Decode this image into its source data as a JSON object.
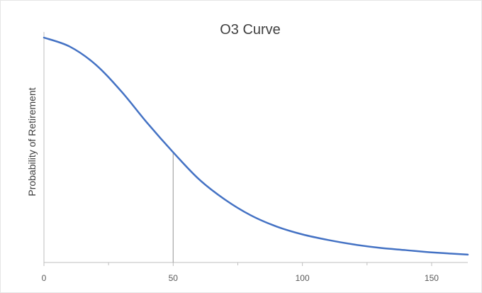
{
  "chart_data": {
    "type": "line",
    "title": "O3 Curve",
    "xlabel": "",
    "ylabel": "Probability of Retirement",
    "xlim": [
      0,
      164
    ],
    "ylim": [
      0,
      1
    ],
    "x_ticks": [
      0,
      50,
      100,
      150
    ],
    "x_tick_labels": [
      "0",
      "50",
      "100",
      "150"
    ],
    "grid": false,
    "legend": "none",
    "colors": {
      "series": "#4472c4",
      "axis": "#bfbfbf",
      "marker_line": "#a6a6a6"
    },
    "series": [
      {
        "x": [
          0,
          10,
          20,
          30,
          40,
          50,
          60,
          70,
          80,
          90,
          100,
          110,
          120,
          130,
          140,
          150,
          164
        ],
        "values": [
          1.0,
          0.96,
          0.88,
          0.76,
          0.62,
          0.49,
          0.37,
          0.28,
          0.21,
          0.16,
          0.125,
          0.1,
          0.08,
          0.065,
          0.055,
          0.045,
          0.035
        ]
      }
    ],
    "annotations": [
      {
        "type": "vertical-line",
        "x": 50
      }
    ]
  }
}
